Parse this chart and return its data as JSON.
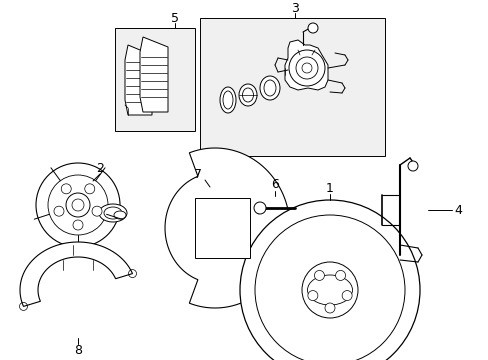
{
  "bg_color": "#ffffff",
  "line_color": "#000000",
  "box_fill": "#f0f0f0",
  "fig_width": 4.89,
  "fig_height": 3.6,
  "dpi": 100,
  "lw": 0.7
}
